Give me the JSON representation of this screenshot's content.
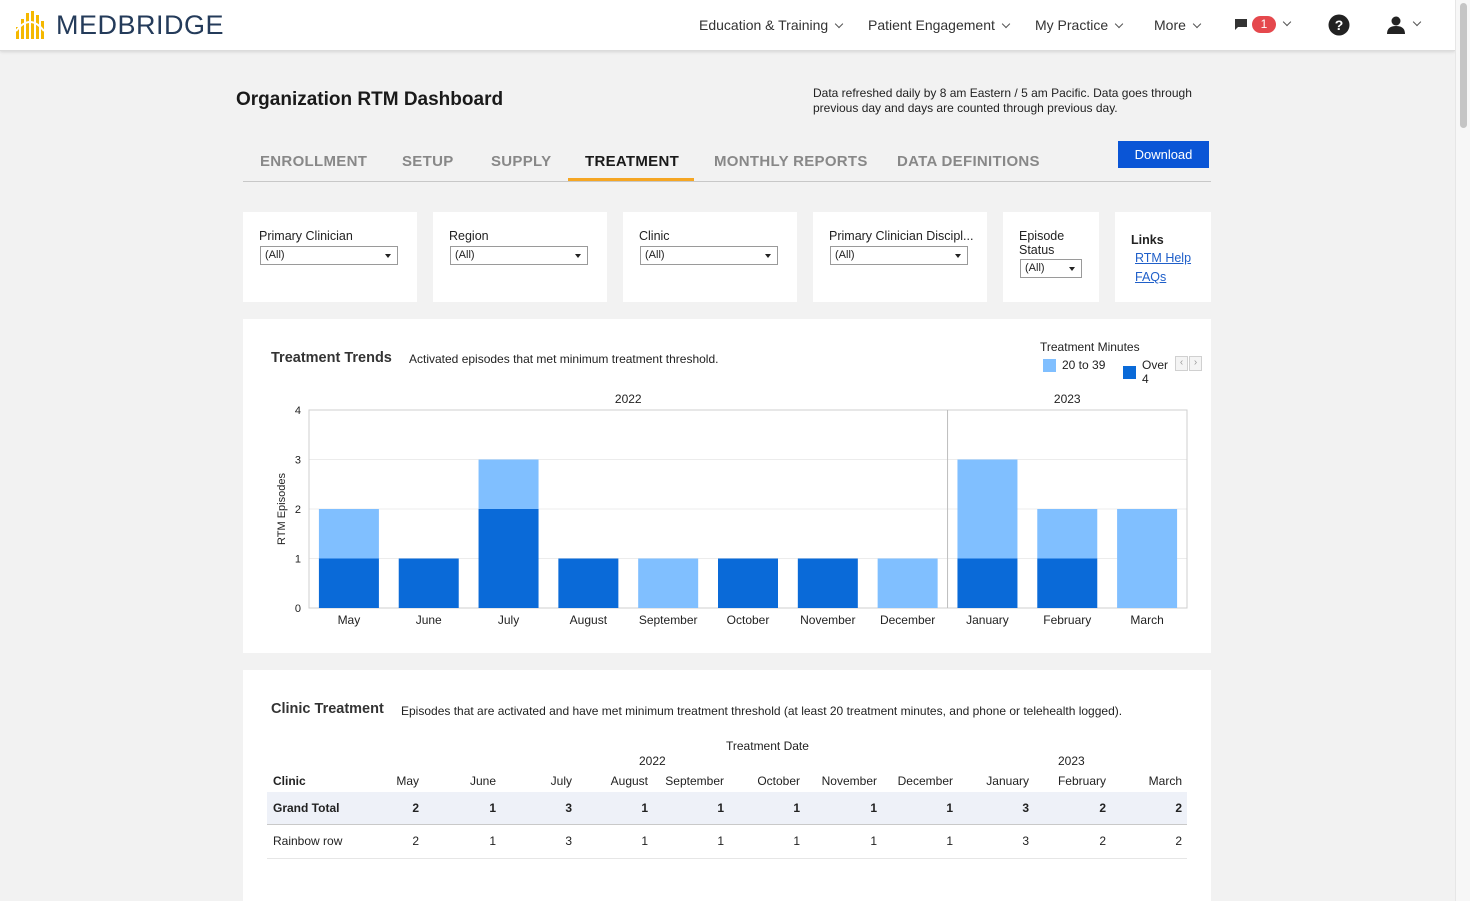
{
  "brand": {
    "name": "MEDBRIDGE",
    "logo_color": "#f5b800"
  },
  "nav": {
    "items": [
      {
        "label": "Education & Training"
      },
      {
        "label": "Patient Engagement"
      },
      {
        "label": "My Practice"
      },
      {
        "label": "More"
      }
    ],
    "messages_count": "1",
    "help_icon": "help-circle-icon",
    "user_icon": "user-icon"
  },
  "header": {
    "title": "Organization RTM Dashboard",
    "refresh_note": "Data refreshed daily by 8 am Eastern / 5 am Pacific. Data goes through previous day and days are counted through previous day."
  },
  "tabs": [
    {
      "label": "ENROLLMENT"
    },
    {
      "label": "SETUP"
    },
    {
      "label": "SUPPLY"
    },
    {
      "label": "TREATMENT",
      "active": true
    },
    {
      "label": "MONTHLY REPORTS"
    },
    {
      "label": "DATA DEFINITIONS"
    }
  ],
  "download_label": "Download",
  "filters": [
    {
      "label": "Primary Clinician",
      "value": "(All)"
    },
    {
      "label": "Region",
      "value": "(All)"
    },
    {
      "label": "Clinic",
      "value": "(All)"
    },
    {
      "label": "Primary Clinician Discipl...",
      "value": "(All)"
    },
    {
      "label": "Episode Status",
      "value": "(All)"
    }
  ],
  "links": {
    "title": "Links",
    "items": [
      {
        "label": "RTM Help"
      },
      {
        "label": "FAQs"
      }
    ]
  },
  "trends": {
    "title": "Treatment Trends",
    "subtitle": "Activated episodes that met minimum treatment threshold.",
    "legend_title": "Treatment Minutes",
    "legend_arrow_left": "‹",
    "legend_arrow_right": "›"
  },
  "chart_data": {
    "type": "bar",
    "stacked": true,
    "title": "Treatment Trends",
    "xlabel": "",
    "ylabel": "RTM Episodes",
    "ylim": [
      0,
      4
    ],
    "yticks": [
      0,
      1,
      2,
      3,
      4
    ],
    "year_groups": [
      {
        "label": "2022",
        "months": 8
      },
      {
        "label": "2023",
        "months": 3
      }
    ],
    "categories": [
      "May",
      "June",
      "July",
      "August",
      "September",
      "October",
      "November",
      "December",
      "January",
      "February",
      "March"
    ],
    "series": [
      {
        "name": "Over 4",
        "color": "#0a6ad8",
        "values": [
          1,
          1,
          2,
          1,
          0,
          1,
          1,
          0,
          1,
          1,
          0
        ]
      },
      {
        "name": "20 to 39",
        "color": "#80bfff",
        "values": [
          1,
          0,
          1,
          0,
          1,
          0,
          0,
          1,
          2,
          1,
          2
        ]
      }
    ],
    "legend": [
      {
        "name": "20 to 39",
        "color": "#80bfff"
      },
      {
        "name": "Over 4",
        "color": "#0a6ad8"
      }
    ]
  },
  "clinic_table": {
    "title": "Clinic Treatment",
    "subtitle": "Episodes that are activated and have met minimum treatment threshold (at least 20 treatment minutes, and phone or telehealth logged).",
    "header_title": "Treatment Date",
    "year_2022": "2022",
    "year_2023": "2023",
    "first_col": "Clinic",
    "months": [
      "May",
      "June",
      "July",
      "August",
      "September",
      "October",
      "November",
      "December",
      "January",
      "February",
      "March"
    ],
    "rows": [
      {
        "name": "Grand Total",
        "values": [
          "2",
          "1",
          "3",
          "1",
          "1",
          "1",
          "1",
          "1",
          "3",
          "2",
          "2"
        ],
        "bold": true
      },
      {
        "name": "Rainbow row",
        "values": [
          "2",
          "1",
          "3",
          "1",
          "1",
          "1",
          "1",
          "1",
          "3",
          "2",
          "2"
        ]
      }
    ]
  }
}
